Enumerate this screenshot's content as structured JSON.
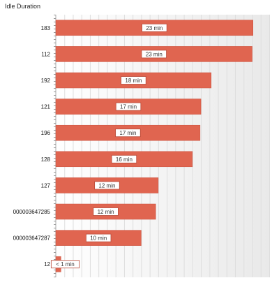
{
  "chart_data": {
    "type": "bar",
    "orientation": "horizontal",
    "title": "Idle Duration",
    "categories": [
      "183",
      "112",
      "192",
      "121",
      "196",
      "128",
      "127",
      "000003647285",
      "000003647287",
      "12"
    ],
    "values": [
      23.1,
      23,
      18.2,
      17,
      16.9,
      16,
      12,
      11.7,
      10,
      0.6
    ],
    "data_labels": [
      "23 min",
      "23 min",
      "18 min",
      "17 min",
      "17 min",
      "16 min",
      "12 min",
      "12 min",
      "10 min",
      "< 1 min"
    ],
    "xlim": [
      0,
      25
    ],
    "unit": "min",
    "grid": true,
    "bar_color": "#e06550"
  }
}
